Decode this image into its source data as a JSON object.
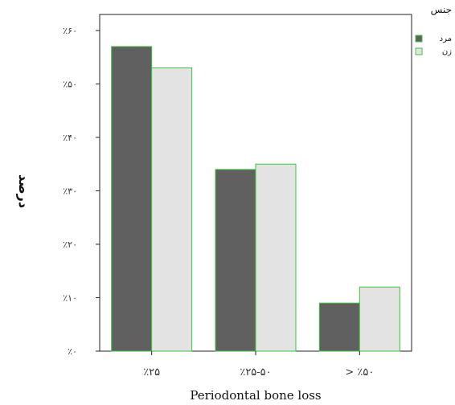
{
  "chart_data": {
    "type": "bar",
    "xlabel": "Periodontal bone loss",
    "ylabel": "درصد",
    "categories": [
      "٪۲۵",
      "٪۲۵-۵۰",
      "> ٪۵۰"
    ],
    "yticks": [
      {
        "value": 0,
        "label": "٪۰"
      },
      {
        "value": 10,
        "label": "٪۱۰"
      },
      {
        "value": 20,
        "label": "٪۲۰"
      },
      {
        "value": 30,
        "label": "٪۳۰"
      },
      {
        "value": 40,
        "label": "٪۴۰"
      },
      {
        "value": 50,
        "label": "٪۵۰"
      },
      {
        "value": 60,
        "label": "٪۶۰"
      }
    ],
    "ylim": [
      0,
      63
    ],
    "grid": false,
    "legend": {
      "title": "جنس",
      "placement": "right",
      "entries": [
        "مرد",
        "زن"
      ]
    },
    "series": [
      {
        "name": "مرد",
        "color": "#606060",
        "values": [
          57,
          34,
          9
        ]
      },
      {
        "name": "زن",
        "color": "#e3e3e3",
        "values": [
          53,
          35,
          12
        ]
      }
    ],
    "bar_stroke": "#3cc43c"
  }
}
